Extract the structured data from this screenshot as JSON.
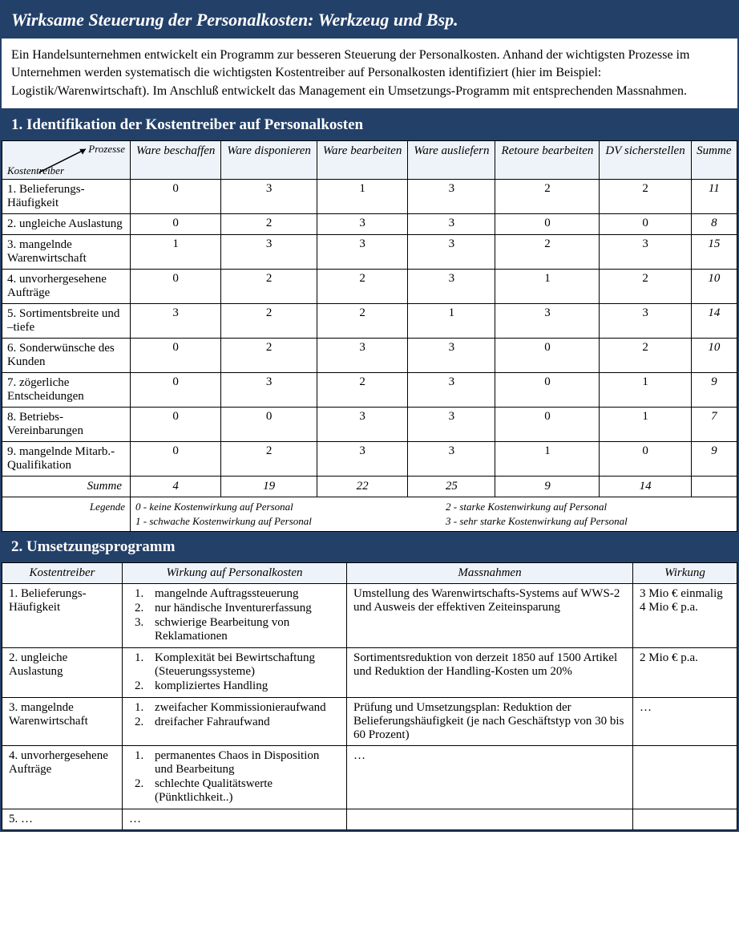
{
  "colors": {
    "header_bg": "#234069",
    "header_fg": "#ffffff",
    "th_bg": "#eef3f9",
    "border": "#000000",
    "text": "#000000"
  },
  "typography": {
    "family": "Garamond / serif",
    "title_size_pt": 22,
    "section_size_pt": 19,
    "body_size_pt": 15,
    "legend_size_pt": 13
  },
  "title": "Wirksame Steuerung der Personalkosten: Werkzeug und Bsp.",
  "intro": "Ein Handelsunternehmen entwickelt ein Programm zur besseren Steuerung der Personalkosten. Anhand der wichtigsten Prozesse im Unternehmen werden systematisch die wichtigsten Kostentreiber auf Personalkosten identifiziert (hier im Beispiel: Logistik/Warenwirtschaft). Im Anschluß entwickelt das Management ein Umsetzungs-Programm mit entsprechenden Massnahmen.",
  "section1_title": "1. Identifikation der Kostentreiber auf Personalkosten",
  "matrix": {
    "corner_top": "Prozesse",
    "corner_bottom": "Kostentreiber",
    "columns": [
      "Ware beschaffen",
      "Ware disponieren",
      "Ware bearbeiten",
      "Ware ausliefern",
      "Retoure bearbeiten",
      "DV sicherstellen"
    ],
    "sum_label": "Summe",
    "rows": [
      {
        "label": "1. Belieferungs-Häufigkeit",
        "vals": [
          0,
          3,
          1,
          3,
          2,
          2
        ],
        "sum": 11
      },
      {
        "label": "2. ungleiche Auslastung",
        "vals": [
          0,
          2,
          3,
          3,
          0,
          0
        ],
        "sum": 8
      },
      {
        "label": "3. mangelnde Warenwirtschaft",
        "vals": [
          1,
          3,
          3,
          3,
          2,
          3
        ],
        "sum": 15
      },
      {
        "label": "4. unvorhergesehene Aufträge",
        "vals": [
          0,
          2,
          2,
          3,
          1,
          2
        ],
        "sum": 10
      },
      {
        "label": "5. Sortimentsbreite und –tiefe",
        "vals": [
          3,
          2,
          2,
          1,
          3,
          3
        ],
        "sum": 14
      },
      {
        "label": "6. Sonderwünsche des Kunden",
        "vals": [
          0,
          2,
          3,
          3,
          0,
          2
        ],
        "sum": 10
      },
      {
        "label": "7. zögerliche Entscheidungen",
        "vals": [
          0,
          3,
          2,
          3,
          0,
          1
        ],
        "sum": 9
      },
      {
        "label": "8. Betriebs-Vereinbarungen",
        "vals": [
          0,
          0,
          3,
          3,
          0,
          1
        ],
        "sum": 7
      },
      {
        "label": "9. mangelnde Mitarb.-Qualifikation",
        "vals": [
          0,
          2,
          3,
          3,
          1,
          0
        ],
        "sum": 9
      }
    ],
    "col_sums": [
      4,
      19,
      22,
      25,
      9,
      14
    ],
    "legend_label": "Legende",
    "legend": [
      "0 - keine Kostenwirkung auf Personal",
      "2 - starke Kostenwirkung auf Personal",
      "1 - schwache Kostenwirkung auf Personal",
      "3 - sehr starke Kostenwirkung auf Personal"
    ]
  },
  "section2_title": "2. Umsetzungsprogramm",
  "program": {
    "headers": [
      "Kostentreiber",
      "Wirkung auf Personalkosten",
      "Massnahmen",
      "Wirkung"
    ],
    "rows": [
      {
        "driver": "1. Belieferungs-Häufigkeit",
        "effects": [
          "mangelnde Auftragssteuerung",
          "nur händische Inventurerfassung",
          "schwierige Bearbeitung von Reklamationen"
        ],
        "measure": "Umstellung des Warenwirtschafts-Systems auf WWS-2 und Ausweis der effektiven Zeiteinsparung",
        "impact": [
          "3 Mio € einmalig",
          "4 Mio € p.a."
        ]
      },
      {
        "driver": "2. ungleiche Auslastung",
        "effects": [
          "Komplexität bei Bewirtschaftung (Steuerungssysteme)",
          "kompliziertes Handling"
        ],
        "measure": "Sortimentsreduktion von derzeit 1850 auf 1500 Artikel und Reduktion der Handling-Kosten um 20%",
        "impact": [
          "2 Mio € p.a."
        ]
      },
      {
        "driver": "3. mangelnde Warenwirtschaft",
        "effects": [
          "zweifacher Kommissionieraufwand",
          "dreifacher Fahraufwand"
        ],
        "measure": "Prüfung und Umsetzungsplan: Reduktion der Belieferungshäufigkeit (je nach Geschäftstyp von 30 bis 60 Prozent)",
        "impact": [
          "…"
        ]
      },
      {
        "driver": "4. unvorhergesehene Aufträge",
        "effects": [
          "permanentes Chaos in Disposition und Bearbeitung",
          "schlechte Qualitätswerte (Pünktlichkeit..)"
        ],
        "measure": "…",
        "impact": []
      },
      {
        "driver": "5. …",
        "effects_text": "…",
        "measure": "",
        "impact": []
      }
    ]
  }
}
